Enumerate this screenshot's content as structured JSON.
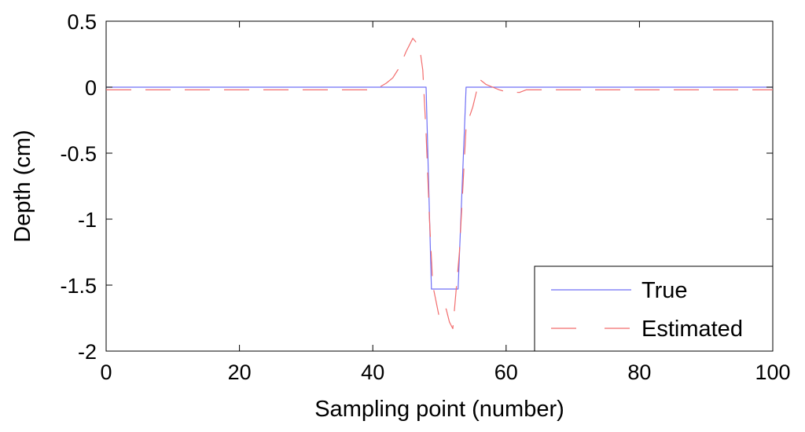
{
  "chart_data": {
    "type": "line",
    "xlabel": "Sampling point (number)",
    "ylabel": "Depth (cm)",
    "xlim": [
      0,
      100
    ],
    "ylim": [
      -2,
      0.5
    ],
    "xticks": [
      0,
      20,
      40,
      60,
      80,
      100
    ],
    "xtick_labels": [
      "0",
      "20",
      "40",
      "60",
      "80",
      "100"
    ],
    "yticks": [
      0.5,
      0,
      -0.5,
      -1,
      -1.5,
      -2
    ],
    "ytick_labels": [
      "0.5",
      "0",
      "-0.5",
      "-1",
      "-1.5",
      "-2"
    ],
    "grid": false,
    "legend_position": "bottom-right",
    "series": [
      {
        "name": "True",
        "color": "#6f6ff5",
        "dash": "solid",
        "x": [
          0,
          48,
          48.8,
          52.8,
          54,
          100
        ],
        "y": [
          0,
          0,
          -1.53,
          -1.53,
          0,
          0
        ]
      },
      {
        "name": "Estimated",
        "color": "#f26d6d",
        "dash": "dashed",
        "x": [
          0,
          40,
          41,
          42,
          43,
          44,
          45,
          46,
          47,
          47.5,
          48,
          48.5,
          49,
          50,
          50.5,
          51,
          51.5,
          52,
          53,
          54,
          55,
          56,
          57,
          58,
          59,
          60,
          62,
          63,
          64,
          100
        ],
        "y": [
          -0.02,
          -0.02,
          0.0,
          0.03,
          0.07,
          0.15,
          0.27,
          0.37,
          0.31,
          0.13,
          -0.35,
          -1.0,
          -1.5,
          -1.75,
          -1.72,
          -1.68,
          -1.78,
          -1.83,
          -1.25,
          -0.3,
          -0.15,
          0.06,
          0.02,
          0.0,
          -0.02,
          -0.035,
          -0.04,
          -0.02,
          -0.02,
          -0.02
        ]
      }
    ]
  }
}
